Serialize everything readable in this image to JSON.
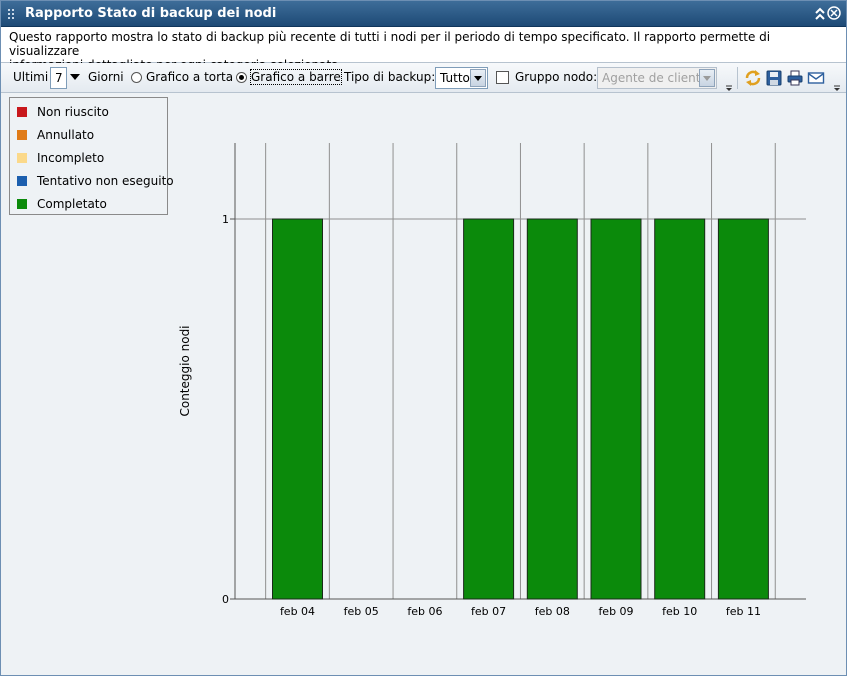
{
  "window": {
    "title": "Rapporto Stato di backup dei nodi",
    "description_line1": "Questo rapporto mostra lo stato di backup più recente di tutti i nodi per il periodo di tempo specificato. Il rapporto permette di visualizzare",
    "description_line2": "informazioni dettagliate per ogni categoria selezionata."
  },
  "toolbar": {
    "last_label": "Ultimi",
    "days_value": "7",
    "days_label": "Giorni",
    "pie_label": "Grafico a torta",
    "bar_label": "Grafico a barre",
    "chart_mode_selected": "bar",
    "backup_type_label": "Tipo di backup:",
    "backup_type_value": "Tutto",
    "node_group_label": "Gruppo nodo:",
    "node_group_checked": false,
    "node_group_value": "Agente de cliente",
    "icons": [
      "refresh-icon",
      "save-icon",
      "print-icon",
      "email-icon"
    ]
  },
  "legend": {
    "items": [
      {
        "label": "Non riuscito",
        "color": "#c8181c"
      },
      {
        "label": "Annullato",
        "color": "#e07b18"
      },
      {
        "label": "Incompleto",
        "color": "#fbd98a"
      },
      {
        "label": "Tentativo non eseguito",
        "color": "#1c5fae"
      },
      {
        "label": "Completato",
        "color": "#0b8a0b"
      }
    ]
  },
  "chart_data": {
    "type": "bar",
    "categories": [
      "feb 04",
      "feb 05",
      "feb 06",
      "feb 07",
      "feb 08",
      "feb 09",
      "feb 10",
      "feb 11"
    ],
    "series": [
      {
        "name": "Completato",
        "color": "#0b8a0b",
        "values": [
          1,
          0,
          0,
          1,
          1,
          1,
          1,
          1
        ]
      }
    ],
    "ylabel": "Conteggio nodi",
    "ylim": [
      0,
      1
    ],
    "yticks": [
      "0",
      "1"
    ],
    "grid": true,
    "legend_position": "top-left"
  }
}
